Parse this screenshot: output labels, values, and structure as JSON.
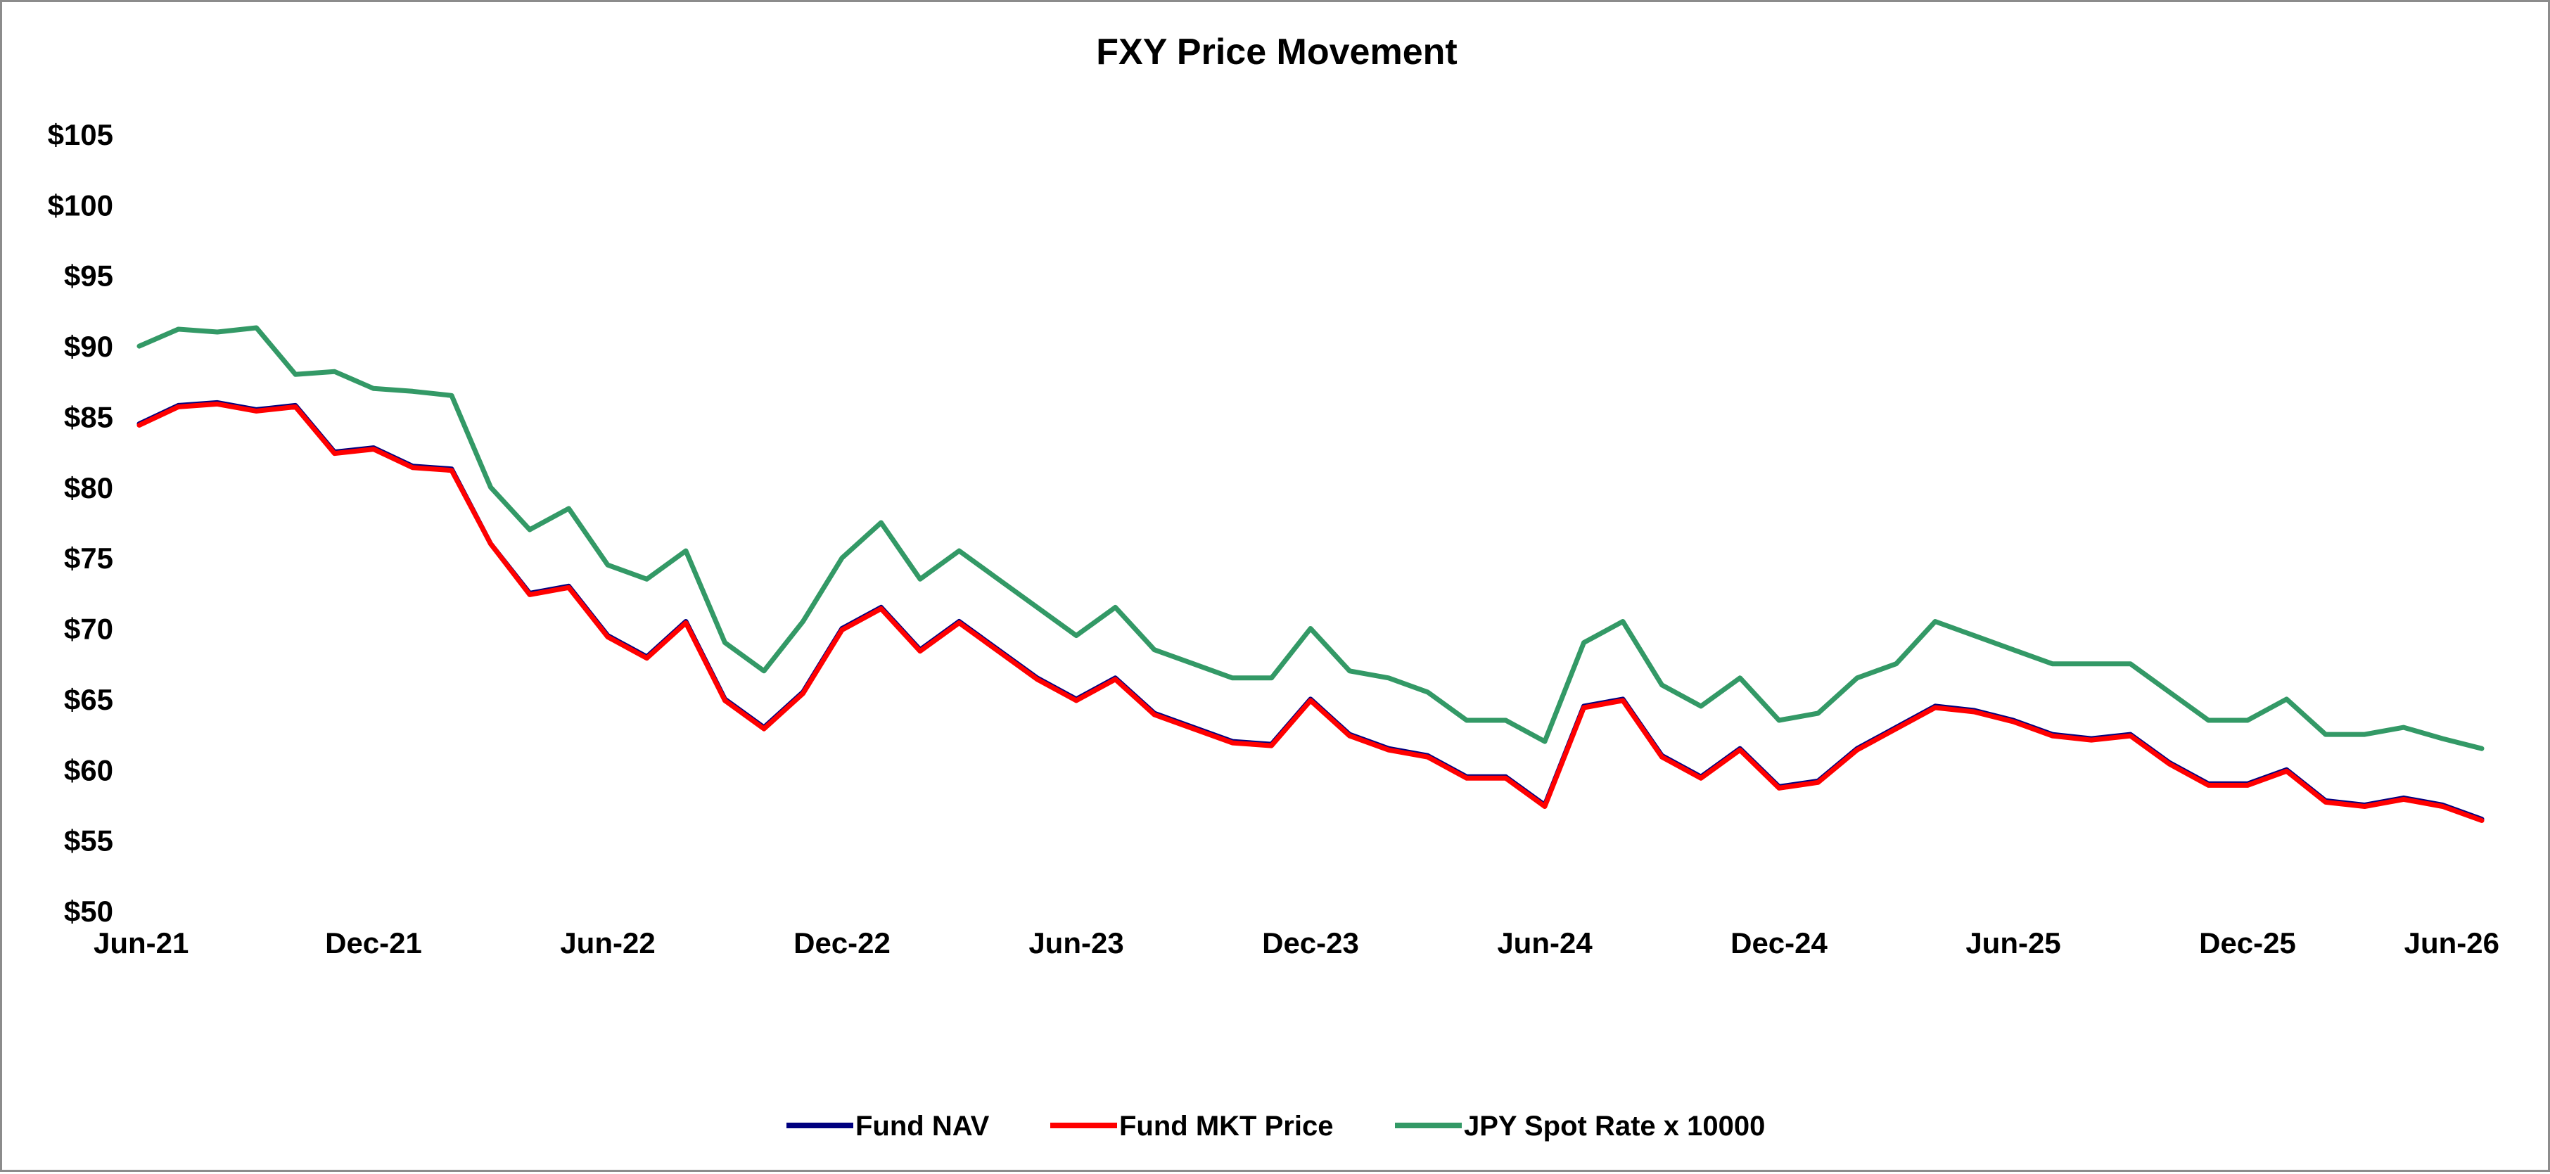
{
  "chart_data": {
    "type": "line",
    "title": "FXY Price Movement",
    "xlabel": "",
    "ylabel": "",
    "ylim": [
      50,
      105
    ],
    "y_ticks": [
      "$105",
      "$100",
      "$95",
      "$90",
      "$85",
      "$80",
      "$75",
      "$70",
      "$65",
      "$60",
      "$55",
      "$50"
    ],
    "x_ticks": [
      "Jun-21",
      "Dec-21",
      "Jun-22",
      "Dec-22",
      "Jun-23",
      "Dec-23",
      "Jun-24",
      "Dec-24",
      "Jun-25",
      "Dec-25",
      "Jun-26"
    ],
    "grid": false,
    "legend": "bottom",
    "x": [
      "Jun-21",
      "Jul-21",
      "Aug-21",
      "Sep-21",
      "Oct-21",
      "Nov-21",
      "Dec-21",
      "Jan-22",
      "Feb-22",
      "Mar-22",
      "Apr-22",
      "May-22",
      "Jun-22",
      "Jul-22",
      "Aug-22",
      "Sep-22",
      "Oct-22",
      "Nov-22",
      "Dec-22",
      "Jan-23",
      "Feb-23",
      "Mar-23",
      "Apr-23",
      "May-23",
      "Jun-23",
      "Jul-23",
      "Aug-23",
      "Sep-23",
      "Oct-23",
      "Nov-23",
      "Dec-23",
      "Jan-24",
      "Feb-24",
      "Mar-24",
      "Apr-24",
      "May-24",
      "Jun-24",
      "Jul-24",
      "Aug-24",
      "Sep-24",
      "Oct-24",
      "Nov-24",
      "Dec-24",
      "Jan-25",
      "Feb-25",
      "Mar-25",
      "Apr-25",
      "May-25",
      "Jun-25",
      "Jul-25",
      "Aug-25",
      "Sep-25",
      "Oct-25",
      "Nov-25",
      "Dec-25",
      "Jan-26",
      "Feb-26",
      "Mar-26",
      "Apr-26",
      "May-26",
      "Jun-26"
    ],
    "series": [
      {
        "name": "Fund NAV",
        "color": "#00007f",
        "values": [
          84.5,
          85.8,
          86.0,
          85.5,
          85.8,
          82.5,
          82.8,
          81.5,
          81.3,
          76.0,
          72.5,
          73.0,
          69.5,
          68.0,
          70.5,
          65.0,
          63.0,
          65.5,
          70.0,
          71.5,
          68.5,
          70.5,
          68.5,
          66.5,
          65.0,
          66.5,
          64.0,
          63.0,
          62.0,
          61.8,
          65.0,
          62.5,
          61.5,
          61.0,
          59.5,
          59.5,
          57.5,
          64.5,
          65.0,
          61.0,
          59.5,
          61.5,
          58.8,
          59.2,
          61.5,
          63.0,
          64.5,
          64.2,
          63.5,
          62.5,
          62.2,
          62.5,
          60.5,
          59.0,
          59.0,
          60.0,
          57.8,
          57.5,
          58.0,
          57.5,
          56.5
        ]
      },
      {
        "name": "Fund MKT Price",
        "color": "#ff0000",
        "values": [
          84.4,
          85.7,
          85.9,
          85.4,
          85.7,
          82.4,
          82.7,
          81.4,
          81.2,
          76.0,
          72.4,
          72.9,
          69.4,
          67.9,
          70.4,
          64.9,
          62.9,
          65.4,
          69.9,
          71.4,
          68.4,
          70.4,
          68.4,
          66.4,
          64.9,
          66.4,
          63.9,
          62.9,
          61.9,
          61.7,
          64.9,
          62.4,
          61.4,
          60.9,
          59.4,
          59.4,
          57.4,
          64.4,
          64.9,
          60.9,
          59.4,
          61.4,
          58.7,
          59.1,
          61.4,
          62.9,
          64.4,
          64.1,
          63.4,
          62.4,
          62.1,
          62.4,
          60.4,
          58.9,
          58.9,
          59.9,
          57.7,
          57.4,
          57.9,
          57.4,
          56.4
        ]
      },
      {
        "name": "JPY Spot Rate x 10000",
        "color": "#339966",
        "values": [
          90.0,
          91.2,
          91.0,
          91.3,
          88.0,
          88.2,
          87.0,
          86.8,
          86.5,
          80.0,
          77.0,
          78.5,
          74.5,
          73.5,
          75.5,
          69.0,
          67.0,
          70.5,
          75.0,
          77.5,
          73.5,
          75.5,
          73.5,
          71.5,
          69.5,
          71.5,
          68.5,
          67.5,
          66.5,
          66.5,
          70.0,
          67.0,
          66.5,
          65.5,
          63.5,
          63.5,
          62.0,
          69.0,
          70.5,
          66.0,
          64.5,
          66.5,
          63.5,
          64.0,
          66.5,
          67.5,
          70.5,
          69.5,
          68.5,
          67.5,
          67.5,
          67.5,
          65.5,
          63.5,
          63.5,
          65.0,
          62.5,
          62.5,
          63.0,
          62.2,
          61.5
        ]
      }
    ]
  }
}
